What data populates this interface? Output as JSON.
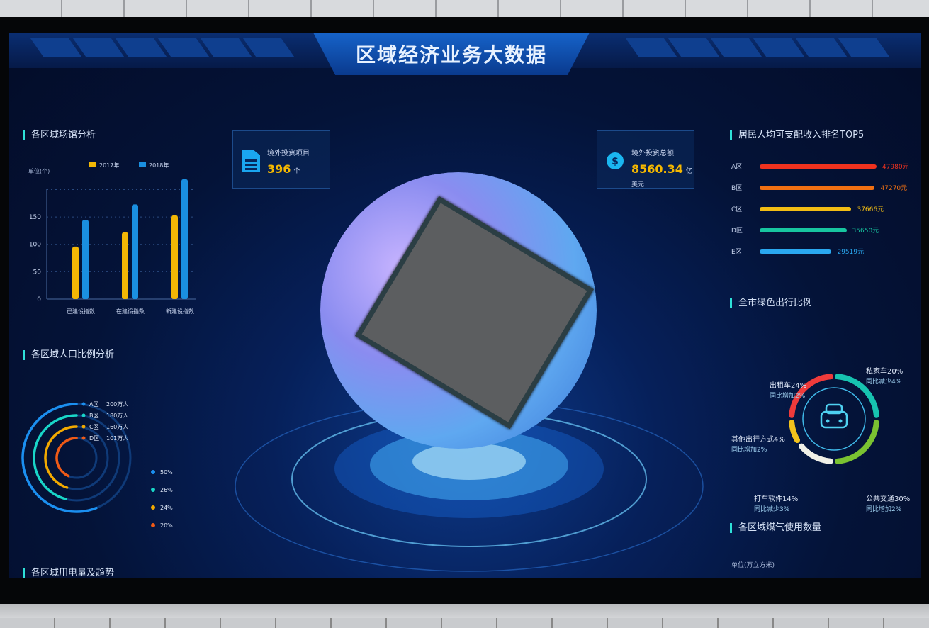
{
  "header": {
    "title": "区域经济业务大数据"
  },
  "kpis": [
    {
      "label": "境外投资项目",
      "value": "396",
      "unit": "个",
      "icon": "file-list-icon"
    },
    {
      "label": "境外投资总额",
      "value": "8560.34",
      "unit": "亿美元",
      "icon": "dollar-icon"
    }
  ],
  "left": {
    "bar_section_title": "各区域场馆分析",
    "population_section_title": "各区域人口比例分析",
    "power_section_title": "各区域用电量及趋势"
  },
  "chart_data": [
    {
      "type": "bar",
      "unit_label": "单位(个)",
      "categories": [
        "已建设指数",
        "在建设指数",
        "新建设指数"
      ],
      "series": [
        {
          "name": "2017年",
          "color": "#f2b705",
          "values": [
            96,
            122,
            153
          ]
        },
        {
          "name": "2018年",
          "color": "#1a8fe0",
          "values": [
            145,
            173,
            219
          ]
        }
      ],
      "yticks": [
        0,
        50,
        100,
        150
      ],
      "ylim": [
        0,
        220
      ],
      "grid": true,
      "legend": "top"
    },
    {
      "type": "radial-bar",
      "items": [
        {
          "name": "A区",
          "value": "200万人",
          "percent": 50,
          "color": "#1b8ff0"
        },
        {
          "name": "B区",
          "value": "180万人",
          "percent": 26,
          "color": "#19d6c8"
        },
        {
          "name": "C区",
          "value": "160万人",
          "percent": 24,
          "color": "#f2a900"
        },
        {
          "name": "D区",
          "value": "101万人",
          "percent": 20,
          "color": "#f05a16"
        }
      ],
      "legend_labels": [
        "50%",
        "26%",
        "24%",
        "20%"
      ]
    },
    {
      "type": "bar",
      "orientation": "horizontal",
      "title": "居民人均可支配收入排名TOP5",
      "categories": [
        "A区",
        "B区",
        "C区",
        "D区",
        "E区"
      ],
      "values": [
        47980,
        47270,
        37666,
        35650,
        29519
      ],
      "value_labels": [
        "47980元",
        "47270元",
        "37666元",
        "35650元",
        "29519元"
      ],
      "colors": [
        "#f0321e",
        "#f27012",
        "#f2bd14",
        "#17c6a0",
        "#2aa8f0"
      ]
    },
    {
      "type": "pie",
      "title": "全市绿色出行比例",
      "slices": [
        {
          "name": "私家车",
          "percent": 20,
          "label": "私家车20%",
          "note": "同比减少4%",
          "color": "#17c3b0"
        },
        {
          "name": "公共交通",
          "percent": 30,
          "label": "公共交通30%",
          "note": "同比增加2%",
          "color": "#7ac231"
        },
        {
          "name": "打车软件",
          "percent": 14,
          "label": "打车软件14%",
          "note": "同比减少3%",
          "color": "#f0f0e8"
        },
        {
          "name": "其他出行方式",
          "percent": 4,
          "label": "其他出行方式4%",
          "note": "同比增加2%",
          "color": "#f2c21c"
        },
        {
          "name": "出租车",
          "percent": 24,
          "label": "出租车24%",
          "note": "同比增加2%",
          "color": "#ef3b3b"
        }
      ]
    }
  ],
  "right": {
    "gas_section_title": "各区域煤气使用数量",
    "gas_unit": "单位(万立方米)"
  }
}
